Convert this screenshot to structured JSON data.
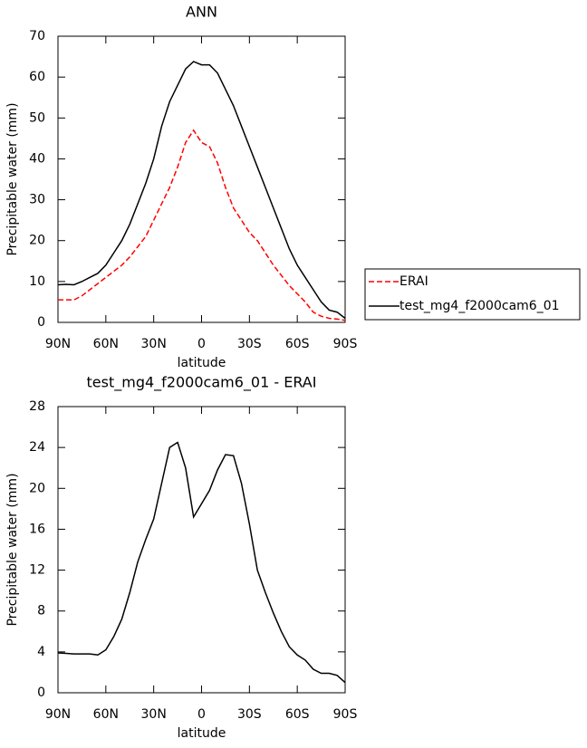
{
  "chart_data": [
    {
      "type": "line",
      "title": "ANN",
      "xlabel": "latitude",
      "ylabel": "Precipitable water (mm)",
      "x": [
        90,
        85,
        80,
        75,
        70,
        65,
        60,
        55,
        50,
        45,
        40,
        35,
        30,
        25,
        20,
        15,
        10,
        5,
        0,
        -5,
        -10,
        -15,
        -20,
        -25,
        -30,
        -35,
        -40,
        -45,
        -50,
        -55,
        -60,
        -65,
        -70,
        -75,
        -80,
        -85,
        -90
      ],
      "xlim": [
        90,
        -90
      ],
      "xticks": [
        {
          "value": 90,
          "label": "90N"
        },
        {
          "value": 60,
          "label": "60N"
        },
        {
          "value": 30,
          "label": "30N"
        },
        0,
        {
          "value": -30,
          "label": "30S"
        },
        {
          "value": -60,
          "label": "60S"
        },
        {
          "value": -90,
          "label": "90S"
        }
      ],
      "ylim": [
        0,
        70
      ],
      "yticks": [
        0,
        10,
        20,
        30,
        40,
        50,
        60,
        70
      ],
      "legend": "right",
      "series": [
        {
          "name": "ERAI",
          "color": "#ff0000",
          "linestyle": "dashed",
          "values": [
            5.5,
            5.5,
            5.5,
            6.5,
            8,
            9.5,
            11,
            12.5,
            14,
            16,
            18.5,
            21,
            25,
            29,
            33,
            38,
            44,
            47,
            44,
            43,
            39,
            33,
            28,
            25,
            22,
            20,
            17,
            14,
            11.5,
            9,
            7,
            5,
            2.5,
            1.5,
            1,
            0.8,
            0.5
          ]
        },
        {
          "name": "test_mg4_f2000cam6_01",
          "color": "#000000",
          "linestyle": "solid",
          "values": [
            9.2,
            9.3,
            9.2,
            10,
            11,
            12,
            14,
            17,
            20,
            24,
            29,
            34,
            40,
            48,
            54,
            58,
            62,
            63.8,
            63,
            63,
            61,
            57,
            53,
            48,
            43,
            38,
            33,
            28,
            23,
            18,
            14,
            11,
            8,
            5,
            3,
            2.5,
            1
          ]
        }
      ]
    },
    {
      "type": "line",
      "title": "test_mg4_f2000cam6_01 - ERAI",
      "xlabel": "latitude",
      "ylabel": "Precipitable water (mm)",
      "x": [
        90,
        85,
        80,
        75,
        70,
        65,
        60,
        55,
        50,
        45,
        40,
        35,
        30,
        25,
        20,
        15,
        10,
        5,
        0,
        -5,
        -10,
        -15,
        -20,
        -25,
        -30,
        -35,
        -40,
        -45,
        -50,
        -55,
        -60,
        -65,
        -70,
        -75,
        -80,
        -85,
        -90
      ],
      "xlim": [
        90,
        -90
      ],
      "xticks": [
        {
          "value": 90,
          "label": "90N"
        },
        {
          "value": 60,
          "label": "60N"
        },
        {
          "value": 30,
          "label": "30N"
        },
        0,
        {
          "value": -30,
          "label": "30S"
        },
        {
          "value": -60,
          "label": "60S"
        },
        {
          "value": -90,
          "label": "90S"
        }
      ],
      "ylim": [
        0,
        28
      ],
      "yticks": [
        0,
        4,
        8,
        12,
        16,
        20,
        24,
        28
      ],
      "series": [
        {
          "color": "#000000",
          "linestyle": "solid",
          "values": [
            3.9,
            3.85,
            3.8,
            3.8,
            3.8,
            3.7,
            4.2,
            5.5,
            7.2,
            9.8,
            12.8,
            15,
            17,
            20.5,
            24,
            24.5,
            22,
            17.2,
            18.5,
            19.8,
            21.8,
            23.3,
            23.2,
            20.5,
            16.5,
            12,
            9.8,
            7.8,
            6,
            4.5,
            3.7,
            3.2,
            2.3,
            1.9,
            1.9,
            1.7,
            1
          ]
        }
      ]
    }
  ]
}
